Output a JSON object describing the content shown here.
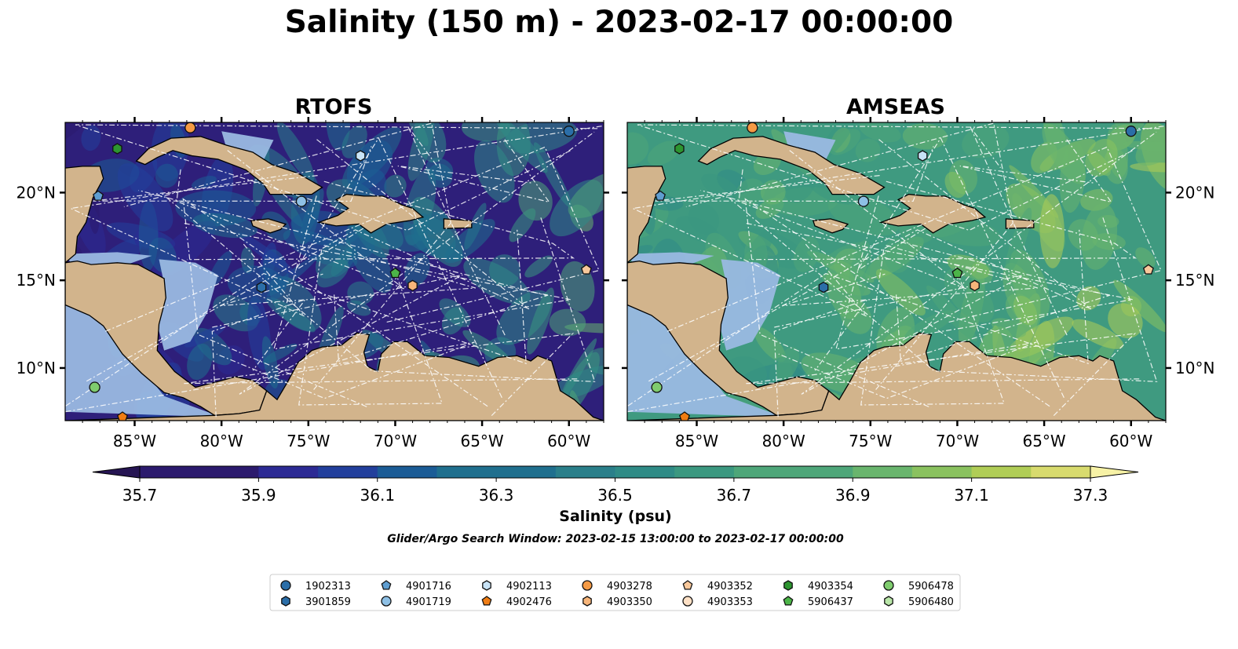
{
  "title": "Salinity (150 m) - 2023-02-17 00:00:00",
  "panels": [
    {
      "title": "RTOFS",
      "base": "#2e1f7a",
      "variant": "rtofs"
    },
    {
      "title": "AMSEAS",
      "base": "#3f9a80",
      "variant": "amseas"
    }
  ],
  "x_ticks": [
    "85°W",
    "80°W",
    "75°W",
    "70°W",
    "65°W",
    "60°W"
  ],
  "y_ticks": [
    "20°N",
    "15°N",
    "10°N"
  ],
  "colorbar": {
    "label": "Salinity (psu)",
    "ticks": [
      "35.7",
      "35.9",
      "36.1",
      "36.3",
      "36.5",
      "36.7",
      "36.9",
      "37.1",
      "37.3"
    ],
    "colors": [
      "#2b1a6d",
      "#2c2a94",
      "#223f9c",
      "#1b5c96",
      "#1f6f8e",
      "#2a7f8a",
      "#2f8b86",
      "#3b9880",
      "#4ea679",
      "#69b56d",
      "#8ac25f",
      "#b0cd56",
      "#d8db6e"
    ],
    "under_color": "#261553",
    "over_color": "#f7f2a6"
  },
  "search_window": "Glider/Argo Search Window: 2023-02-15 13:00:00 to 2023-02-17 00:00:00",
  "legend": [
    {
      "id": "1902313",
      "marker": "circle",
      "color": "#2b6ea8"
    },
    {
      "id": "3901859",
      "marker": "hexagon",
      "color": "#2b6ea8"
    },
    {
      "id": "4901716",
      "marker": "pentagon",
      "color": "#5f9ed1"
    },
    {
      "id": "4901719",
      "marker": "circle",
      "color": "#8ec0e5"
    },
    {
      "id": "4902113",
      "marker": "hexagon",
      "color": "#c8e3f6"
    },
    {
      "id": "4902476",
      "marker": "pentagon",
      "color": "#f07d14"
    },
    {
      "id": "4903278",
      "marker": "circle",
      "color": "#f59a44"
    },
    {
      "id": "4903350",
      "marker": "hexagon",
      "color": "#f7b57a"
    },
    {
      "id": "4903352",
      "marker": "pentagon",
      "color": "#f8c89b"
    },
    {
      "id": "4903353",
      "marker": "circle",
      "color": "#fde0c5"
    },
    {
      "id": "4903354",
      "marker": "hexagon",
      "color": "#2d9530"
    },
    {
      "id": "5906437",
      "marker": "pentagon",
      "color": "#4cb548"
    },
    {
      "id": "5906478",
      "marker": "circle",
      "color": "#7fcc6e"
    },
    {
      "id": "5906480",
      "marker": "hexagon",
      "color": "#b9e6a8"
    }
  ],
  "map_colors": {
    "land": "#d2b48c",
    "shelf": "#9ab9e2"
  },
  "map_extent": {
    "lon": [
      -89,
      -58
    ],
    "lat": [
      7,
      24
    ]
  },
  "floats": [
    {
      "id": "1902313",
      "lon": -60,
      "lat": 23.5
    },
    {
      "id": "3901859",
      "lon": -77.7,
      "lat": 14.6
    },
    {
      "id": "4901716",
      "lon": -87.1,
      "lat": 19.8
    },
    {
      "id": "4901719",
      "lon": -75.4,
      "lat": 19.5
    },
    {
      "id": "4902113",
      "lon": -72.0,
      "lat": 22.1
    },
    {
      "id": "4902476",
      "lon": -85.7,
      "lat": 7.2
    },
    {
      "id": "4903278",
      "lon": -81.8,
      "lat": 23.7
    },
    {
      "id": "4903350",
      "lon": -69.0,
      "lat": 14.7
    },
    {
      "id": "4903352",
      "lon": -59.0,
      "lat": 15.6
    },
    {
      "id": "4903354",
      "lon": -86.0,
      "lat": 22.5
    },
    {
      "id": "5906437",
      "lon": -70.0,
      "lat": 15.4
    },
    {
      "id": "5906478",
      "lon": -87.3,
      "lat": 8.9
    }
  ]
}
